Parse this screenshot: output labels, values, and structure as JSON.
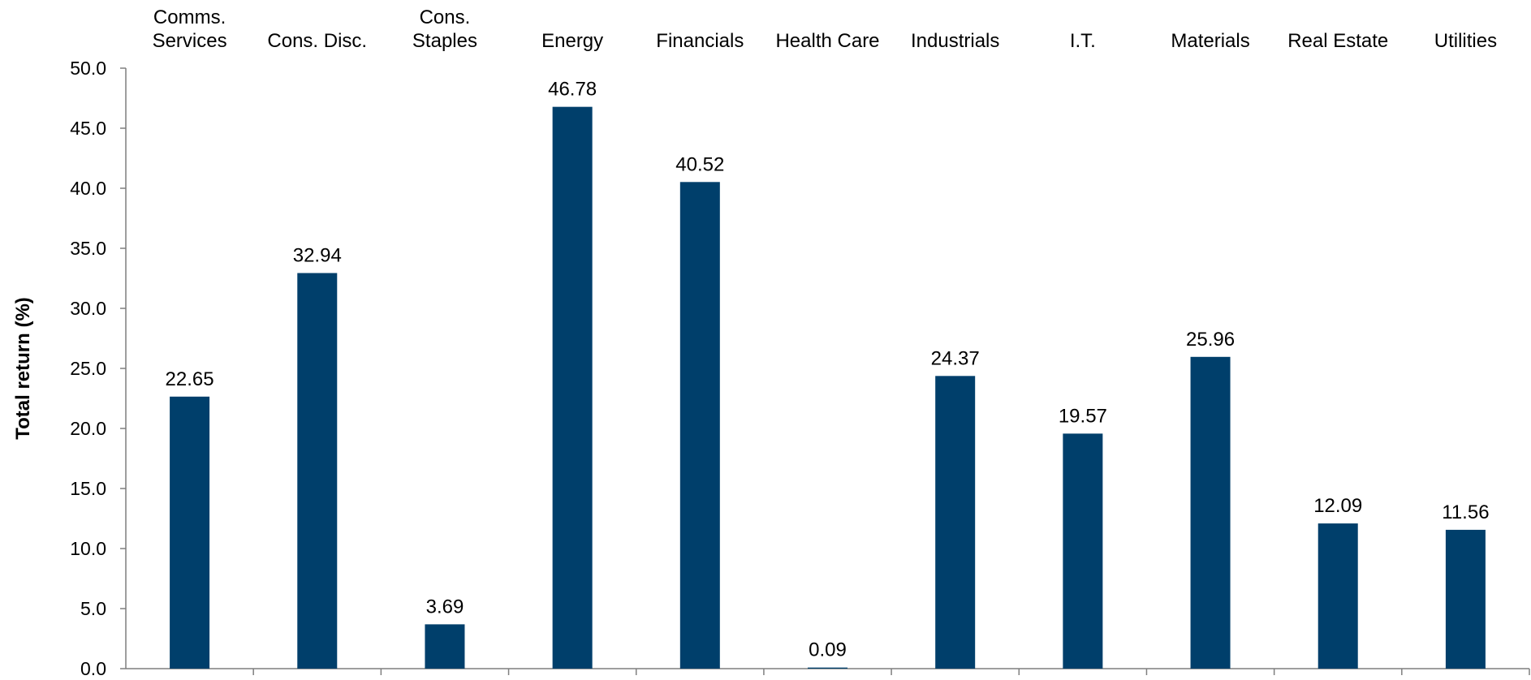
{
  "chart_data": {
    "type": "bar",
    "title": "",
    "xlabel": "",
    "ylabel": "Total return (%)",
    "ylim": [
      0,
      50
    ],
    "yticks": [
      "0.0",
      "5.0",
      "10.0",
      "15.0",
      "20.0",
      "25.0",
      "30.0",
      "35.0",
      "40.0",
      "45.0",
      "50.0"
    ],
    "categories": [
      [
        "Comms.",
        "Services"
      ],
      [
        "Cons. Disc."
      ],
      [
        "Cons.",
        "Staples"
      ],
      [
        "Energy"
      ],
      [
        "Financials"
      ],
      [
        "Health Care"
      ],
      [
        "Industrials"
      ],
      [
        "I.T."
      ],
      [
        "Materials"
      ],
      [
        "Real Estate"
      ],
      [
        "Utilities"
      ]
    ],
    "values": [
      22.65,
      32.94,
      3.69,
      46.78,
      40.52,
      0.09,
      24.37,
      19.57,
      25.96,
      12.09,
      11.56
    ],
    "value_labels": [
      "22.65",
      "32.94",
      "3.69",
      "46.78",
      "40.52",
      "0.09",
      "24.37",
      "19.57",
      "25.96",
      "12.09",
      "11.56"
    ],
    "category_position": "top",
    "grid": false,
    "legend": "none",
    "colors": {
      "bar": "#003f6b",
      "axis": "#7f7f7f",
      "text": "#000000"
    }
  }
}
